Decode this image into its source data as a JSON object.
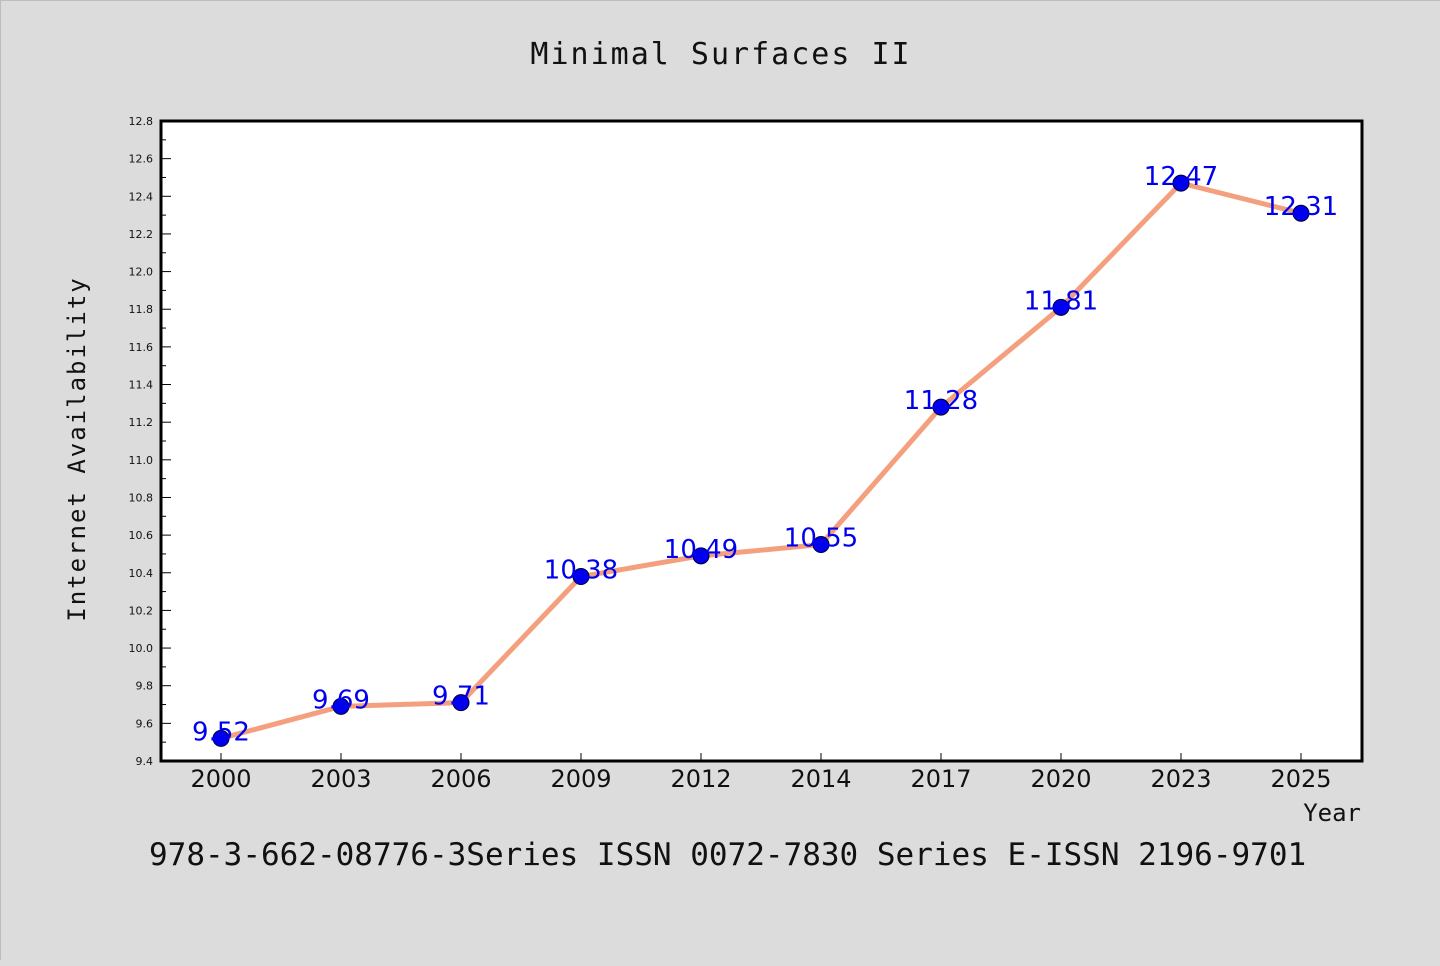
{
  "chart_data": {
    "type": "line",
    "title": "Minimal Surfaces II",
    "xlabel": "Year",
    "ylabel": "Internet Availability",
    "categories": [
      "2000",
      "2003",
      "2006",
      "2009",
      "2012",
      "2014",
      "2017",
      "2020",
      "2023",
      "2025"
    ],
    "series": [
      {
        "values": [
          9.52,
          9.69,
          9.71,
          10.38,
          10.49,
          10.55,
          11.28,
          11.81,
          12.47,
          12.31
        ]
      }
    ],
    "data_labels": [
      "9.52",
      "9.69",
      "9.71",
      "10.38",
      "10.49",
      "10.55",
      "11.28",
      "11.81",
      "12.47",
      "12.31"
    ],
    "ylim": [
      9.4,
      12.8
    ],
    "yticks": [
      "9.4",
      "9.6",
      "9.8",
      "10.0",
      "10.2",
      "10.4",
      "10.6",
      "10.8",
      "11.0",
      "11.2",
      "11.4",
      "11.6",
      "11.8",
      "12.0",
      "12.2",
      "12.4",
      "12.6",
      "12.8"
    ],
    "grid": false,
    "line_color": "#f4a07e",
    "marker_color": "#0000ee",
    "label_color": "#0000ee",
    "caption": "978-3-662-08776-3Series ISSN 0072-7830 Series E-ISSN 2196-9701"
  }
}
